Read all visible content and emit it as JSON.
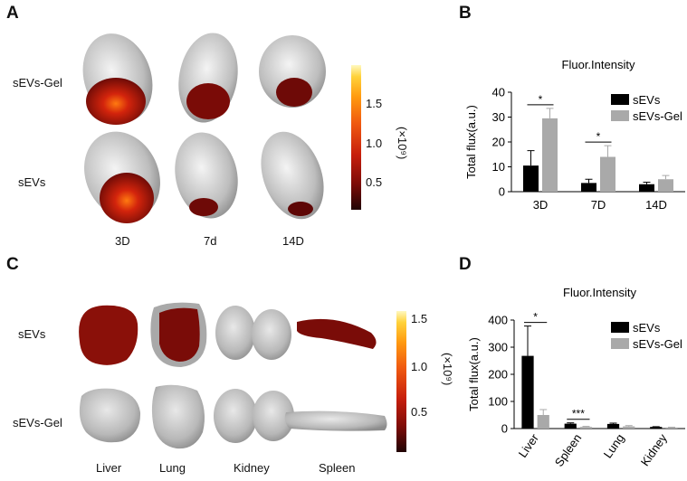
{
  "panels": {
    "A": {
      "label": "A",
      "rows": [
        "sEVs-Gel",
        "sEVs"
      ],
      "columns": [
        "3D",
        "7d",
        "14D"
      ],
      "colorbar": {
        "ticks": [
          "1.5",
          "1.0",
          "0.5"
        ],
        "unit": "(×10⁹)"
      }
    },
    "B": {
      "label": "B"
    },
    "C": {
      "label": "C",
      "rows": [
        "sEVs",
        "sEVs-Gel"
      ],
      "columns": [
        "Liver",
        "Lung",
        "Kidney",
        "Spleen"
      ],
      "colorbar": {
        "ticks": [
          "1.5",
          "1.0",
          "0.5"
        ],
        "unit": "(×10⁹)"
      }
    },
    "D": {
      "label": "D"
    }
  },
  "chart_data": [
    {
      "panel": "B",
      "type": "bar",
      "title": "Fluor.Intensity",
      "xlabel": "",
      "ylabel": "Total flux(a.u.)",
      "categories": [
        "3D",
        "7D",
        "14D"
      ],
      "ylim": [
        0,
        40
      ],
      "yticks": [
        0,
        10,
        20,
        30,
        40
      ],
      "series": [
        {
          "name": "sEVs",
          "color": "#000000",
          "values": [
            10.5,
            3.5,
            3
          ],
          "errors": [
            6,
            1.5,
            0.8
          ]
        },
        {
          "name": "sEVs-Gel",
          "color": "#a9a9a9",
          "values": [
            29.5,
            14,
            5
          ],
          "errors": [
            4,
            4.5,
            1.5
          ]
        }
      ],
      "significance": [
        {
          "category": "3D",
          "label": "*"
        },
        {
          "category": "7D",
          "label": "*"
        }
      ],
      "legend": "top-right"
    },
    {
      "panel": "D",
      "type": "bar",
      "title": "Fluor.Intensity",
      "xlabel": "",
      "ylabel": "Total flux(a.u.)",
      "categories": [
        "Liver",
        "Spleen",
        "Lung",
        "Kidney"
      ],
      "ylim": [
        0,
        400
      ],
      "yticks": [
        0,
        100,
        200,
        300,
        400
      ],
      "series": [
        {
          "name": "sEVs",
          "color": "#000000",
          "values": [
            268,
            18,
            17,
            6
          ],
          "errors": [
            110,
            3,
            3,
            1
          ]
        },
        {
          "name": "sEVs-Gel",
          "color": "#a9a9a9",
          "values": [
            50,
            6,
            8,
            4
          ],
          "errors": [
            20,
            2,
            3,
            1
          ]
        }
      ],
      "significance": [
        {
          "category": "Liver",
          "label": "*"
        },
        {
          "category": "Spleen",
          "label": "***"
        }
      ],
      "legend": "top-right"
    }
  ]
}
